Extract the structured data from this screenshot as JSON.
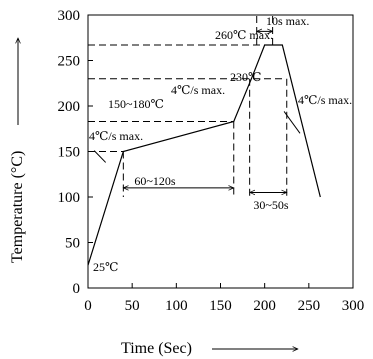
{
  "chart_data": {
    "type": "line",
    "x": [
      0,
      40,
      165,
      185,
      200,
      220,
      263
    ],
    "y": [
      25,
      150,
      183,
      230,
      267,
      267,
      100
    ],
    "xlim": [
      0,
      300
    ],
    "ylim": [
      0,
      300
    ],
    "xticks": [
      0,
      50,
      100,
      150,
      200,
      250,
      300
    ],
    "yticks": [
      0,
      50,
      100,
      150,
      200,
      250,
      300
    ],
    "xlabel": "Time (Sec)",
    "ylabel": "Temperature (°C)",
    "grid": false,
    "reference_lines": {
      "horizontal": [
        150,
        183,
        230,
        267
      ],
      "vertical": [
        40,
        165,
        180,
        225,
        190,
        210
      ]
    },
    "annotations": {
      "start_temp": "25℃",
      "ramp_up": "4℃/s max.",
      "preheat_temp": "150~180℃",
      "preheat_time": "60~120s",
      "ramp_to_peak": "4℃/s max.",
      "reflow_temp": "230℃",
      "reflow_time": "30~50s",
      "peak_temp": "260℃ max.",
      "peak_time": "10s max.",
      "ramp_down": "4℃/s max."
    }
  }
}
